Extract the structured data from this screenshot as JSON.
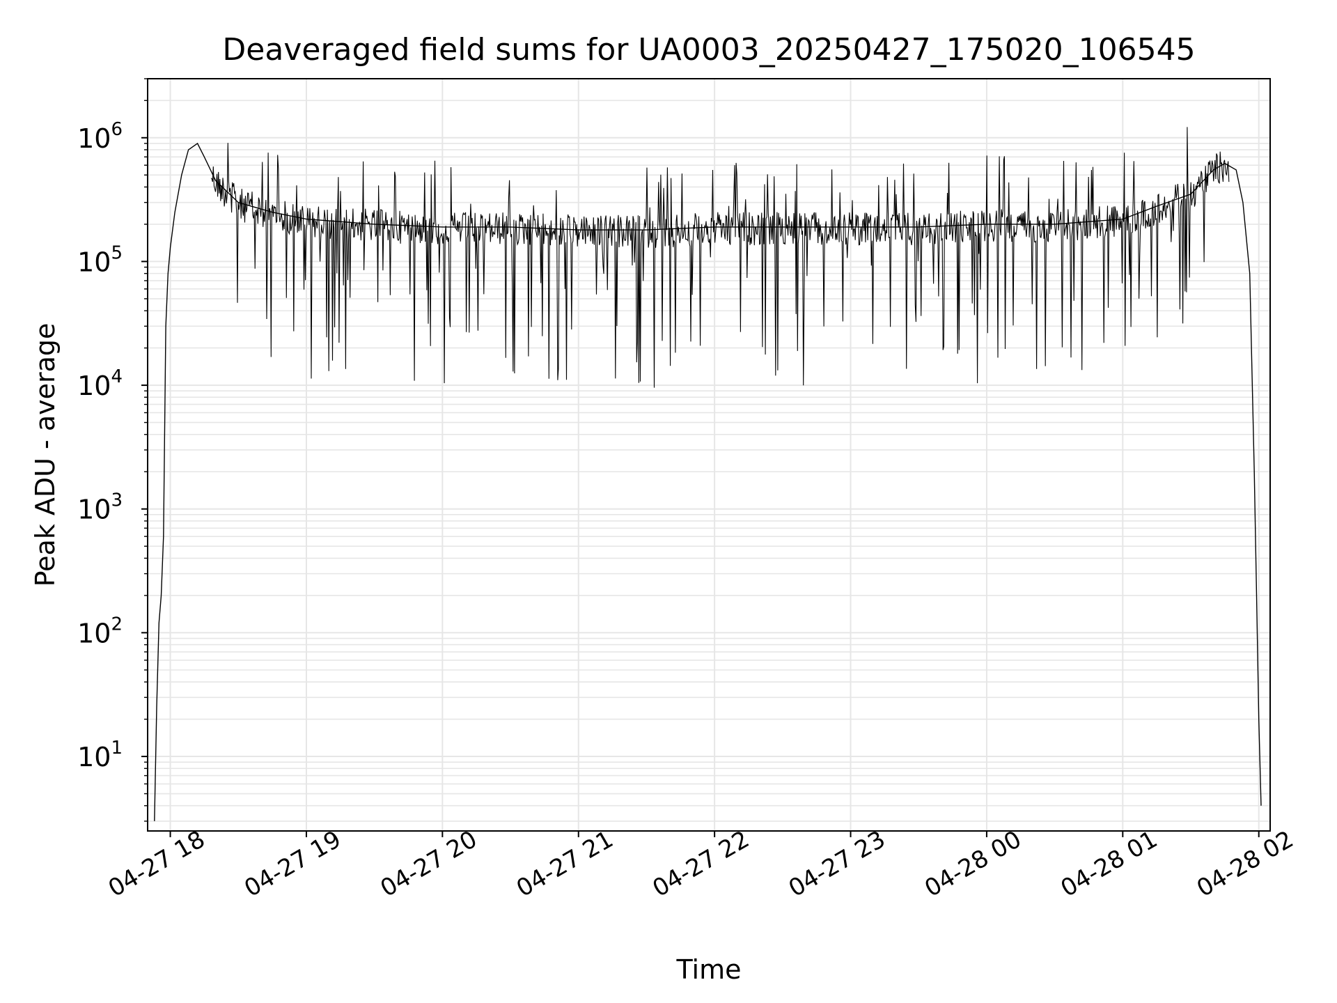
{
  "chart_data": {
    "type": "line",
    "title": "Deaveraged field sums for UA0003_20250427_175020_106545",
    "xlabel": "Time",
    "ylabel": "Peak ADU - average",
    "yscale": "log",
    "grid": "on (major and minor)",
    "line_color": "#000000",
    "grid_color": "#e6e6e6",
    "xlim": [
      "2025-04-27 17:50",
      "2025-04-28 02:05"
    ],
    "ylim": [
      2.5,
      3000000
    ],
    "x_ticks": [
      {
        "t": "2025-04-27 18:00",
        "label": "04-27 18"
      },
      {
        "t": "2025-04-27 19:00",
        "label": "04-27 19"
      },
      {
        "t": "2025-04-27 20:00",
        "label": "04-27 20"
      },
      {
        "t": "2025-04-27 21:00",
        "label": "04-27 21"
      },
      {
        "t": "2025-04-27 22:00",
        "label": "04-27 22"
      },
      {
        "t": "2025-04-27 23:00",
        "label": "04-27 23"
      },
      {
        "t": "2025-04-28 00:00",
        "label": "04-28 00"
      },
      {
        "t": "2025-04-28 01:00",
        "label": "04-28 01"
      },
      {
        "t": "2025-04-28 02:00",
        "label": "04-28 02"
      }
    ],
    "y_ticks": [
      {
        "value": 10,
        "base": "10",
        "exp": "1"
      },
      {
        "value": 100,
        "base": "10",
        "exp": "2"
      },
      {
        "value": 1000,
        "base": "10",
        "exp": "3"
      },
      {
        "value": 10000,
        "base": "10",
        "exp": "4"
      },
      {
        "value": 100000,
        "base": "10",
        "exp": "5"
      },
      {
        "value": 1000000,
        "base": "10",
        "exp": "6"
      }
    ],
    "series": [
      {
        "x": [
          "2025-04-27 17:53",
          "2025-04-27 17:54",
          "2025-04-27 17:55",
          "2025-04-27 17:56",
          "2025-04-27 17:57",
          "2025-04-27 17:58",
          "2025-04-27 17:59",
          "2025-04-27 18:00",
          "2025-04-27 18:02",
          "2025-04-27 18:05",
          "2025-04-27 18:08",
          "2025-04-27 18:12",
          "2025-04-27 18:15",
          "2025-04-27 18:20",
          "2025-04-27 18:30",
          "2025-04-27 18:45",
          "2025-04-27 19:00",
          "2025-04-27 19:30",
          "2025-04-27 20:00",
          "2025-04-27 20:30",
          "2025-04-27 21:00",
          "2025-04-27 21:30",
          "2025-04-27 22:00",
          "2025-04-27 22:30",
          "2025-04-27 23:00",
          "2025-04-27 23:30",
          "2025-04-28 00:00",
          "2025-04-28 00:30",
          "2025-04-28 01:00",
          "2025-04-28 01:15",
          "2025-04-28 01:30",
          "2025-04-28 01:40",
          "2025-04-28 01:45",
          "2025-04-28 01:50",
          "2025-04-28 01:53",
          "2025-04-28 01:56",
          "2025-04-28 01:58",
          "2025-04-28 01:59",
          "2025-04-28 02:00",
          "2025-04-28 02:01"
        ],
        "y": [
          3,
          25,
          120,
          200,
          600,
          30000,
          80000,
          130000,
          250000,
          500000,
          800000,
          900000,
          700000,
          450000,
          300000,
          250000,
          220000,
          200000,
          190000,
          190000,
          180000,
          180000,
          190000,
          190000,
          190000,
          190000,
          200000,
          200000,
          220000,
          280000,
          350000,
          550000,
          620000,
          550000,
          300000,
          80000,
          2000,
          200,
          20,
          4
        ]
      }
    ]
  }
}
